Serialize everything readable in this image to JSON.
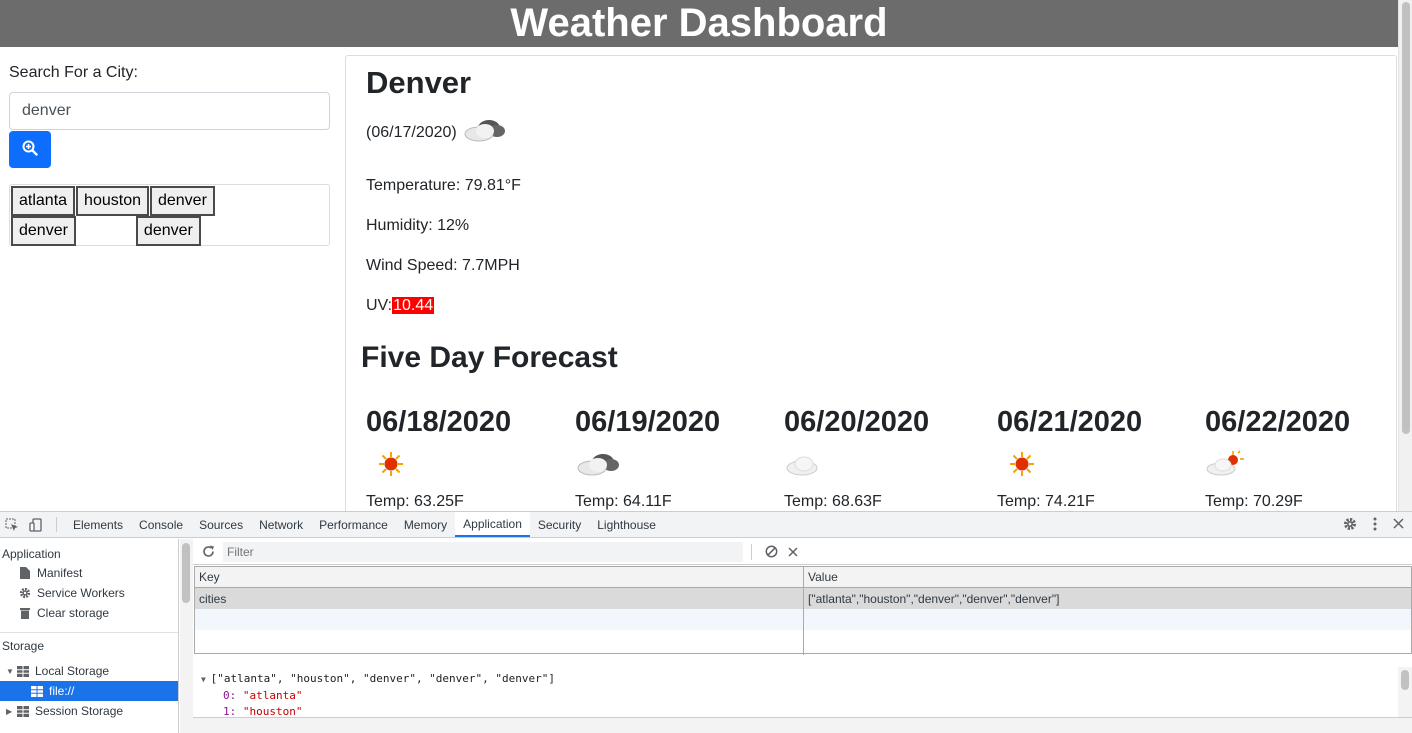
{
  "header": {
    "title": "Weather Dashboard"
  },
  "sidebar": {
    "search_label": "Search For a City:",
    "search_value": "denver",
    "search_button_icon": "search-zoom-icon",
    "history": [
      "atlanta",
      "houston",
      "denver",
      "denver",
      "denver"
    ]
  },
  "current": {
    "city": "Denver",
    "date": "(06/17/2020)",
    "icon": "cloudy-icon",
    "temperature": "Temperature: 79.81°F",
    "humidity": "Humidity: 12%",
    "wind": "Wind Speed: 7.7MPH",
    "uv_label": "UV:",
    "uv_value": "10.44",
    "uv_color": "#ff0000"
  },
  "forecast": {
    "title": "Five Day Forecast",
    "days": [
      {
        "date": "06/18/2020",
        "icon": "sun-icon",
        "temp": "Temp: 63.25F"
      },
      {
        "date": "06/19/2020",
        "icon": "dark-cloud-icon",
        "temp": "Temp: 64.11F"
      },
      {
        "date": "06/20/2020",
        "icon": "cloud-icon",
        "temp": "Temp: 68.63F"
      },
      {
        "date": "06/21/2020",
        "icon": "sun-icon",
        "temp": "Temp: 74.21F"
      },
      {
        "date": "06/22/2020",
        "icon": "sun-behind-cloud-icon",
        "temp": "Temp: 70.29F"
      }
    ]
  },
  "devtools": {
    "tabs": [
      "Elements",
      "Console",
      "Sources",
      "Network",
      "Performance",
      "Memory",
      "Application",
      "Security",
      "Lighthouse"
    ],
    "active_tab": "Application",
    "accent": "#1a73e8",
    "sidebar": {
      "application_heading": "Application",
      "application_items": [
        "Manifest",
        "Service Workers",
        "Clear storage"
      ],
      "storage_heading": "Storage",
      "local_storage": "Local Storage",
      "local_storage_child": "file://",
      "session_storage": "Session Storage"
    },
    "filter_placeholder": "Filter",
    "table": {
      "key_header": "Key",
      "value_header": "Value",
      "rows": [
        {
          "key": "cities",
          "value": "[\"atlanta\",\"houston\",\"denver\",\"denver\",\"denver\"]"
        }
      ]
    },
    "preview": {
      "summary": "[\"atlanta\", \"houston\", \"denver\", \"denver\", \"denver\"]",
      "items": [
        {
          "index": "0:",
          "value": "\"atlanta\""
        },
        {
          "index": "1:",
          "value": "\"houston\""
        }
      ]
    }
  }
}
